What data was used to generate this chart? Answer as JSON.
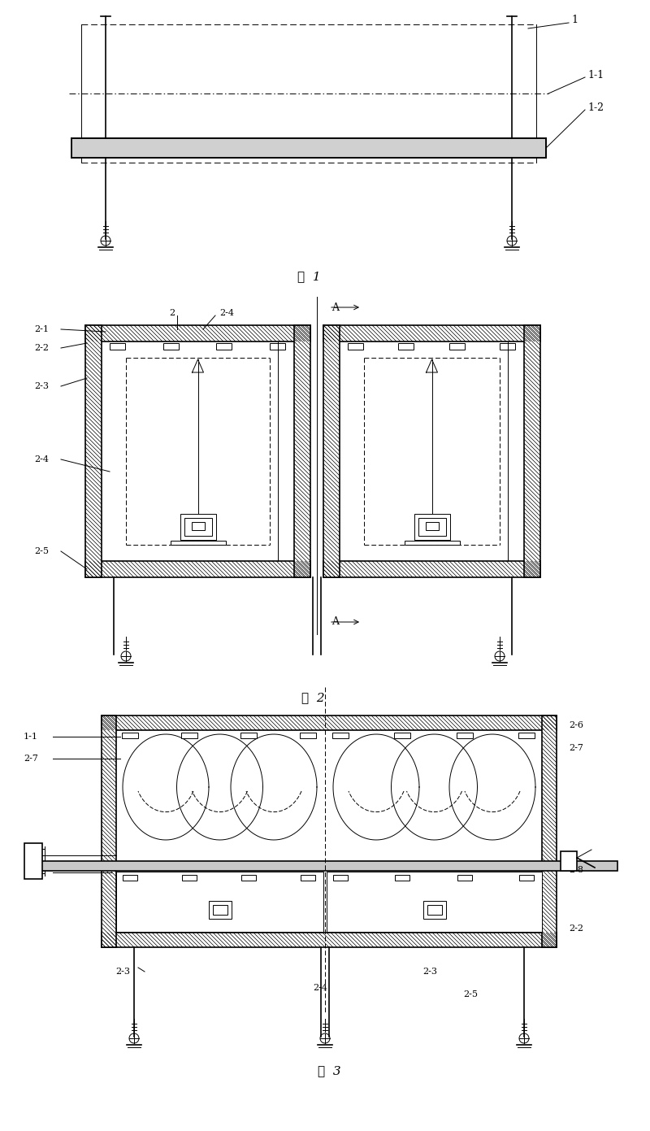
{
  "fig_width": 8.0,
  "fig_height": 13.91,
  "bg_color": "#ffffff",
  "line_color": "#000000",
  "fig1_title": "图  1",
  "fig2_title": "图  2",
  "fig3_title": "图  3",
  "label_1": "1",
  "label_1_1": "1-1",
  "label_1_2": "1-2"
}
